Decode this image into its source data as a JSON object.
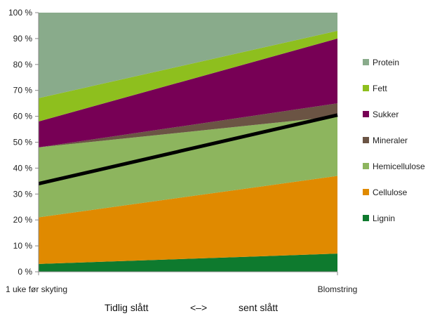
{
  "chart_data": {
    "type": "area",
    "stacked": true,
    "x": [
      "1 uke før skyting",
      "Blomstring"
    ],
    "ylim": [
      0,
      100
    ],
    "y_ticks": [
      "0 %",
      "10 %",
      "20 %",
      "30 %",
      "40 %",
      "50 %",
      "60 %",
      "70 %",
      "80 %",
      "90 %",
      "100 %"
    ],
    "series": [
      {
        "name": "Lignin",
        "color": "#0e7a2e",
        "values": [
          3,
          7
        ]
      },
      {
        "name": "Cellulose",
        "color": "#e08a00",
        "values": [
          18,
          30
        ]
      },
      {
        "name": "Hemicellulose",
        "color": "#8db55e",
        "values": [
          27,
          23
        ]
      },
      {
        "name": "Mineraler",
        "color": "#6b5444",
        "values": [
          0,
          5
        ]
      },
      {
        "name": "Sukker",
        "color": "#770055",
        "values": [
          10,
          25
        ]
      },
      {
        "name": "Fett",
        "color": "#8ebf1e",
        "values": [
          9,
          3
        ]
      },
      {
        "name": "Protein",
        "color": "#89ab8b",
        "values": [
          33,
          7
        ]
      }
    ],
    "line": {
      "color": "#000000",
      "values": [
        34,
        60.5
      ]
    },
    "xlabel": {
      "left": "Tidlig slått",
      "arrow": "<–>",
      "right": "sent slått"
    },
    "legend_position": "right",
    "grid": false
  }
}
